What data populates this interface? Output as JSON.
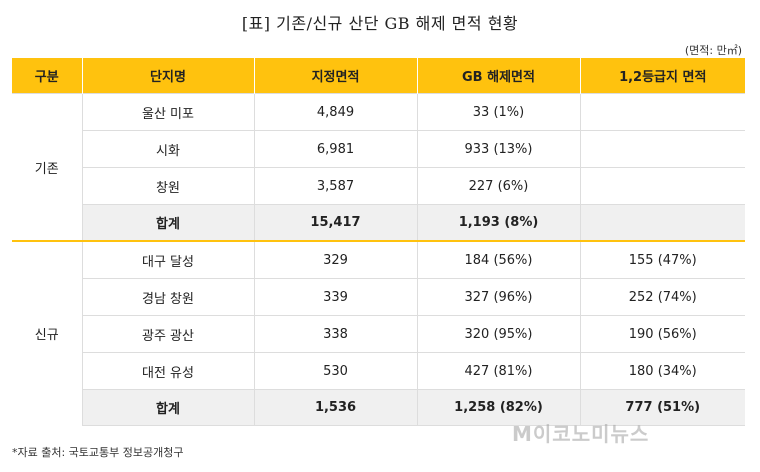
{
  "title": "[표] 기존/신규 산단 GB 해제 면적 현황",
  "unit": "(면적: 만㎡)",
  "header": [
    "구분",
    "단지명",
    "지정면적",
    "GB 해제면적",
    "1,2등급지 면적"
  ],
  "existing": {
    "group": "기존",
    "rows": [
      {
        "name": "울산 미포",
        "area": "4,849",
        "gb": "33 (1%)",
        "grade": ""
      },
      {
        "name": "시화",
        "area": "6,981",
        "gb": "933 (13%)",
        "grade": ""
      },
      {
        "name": "창원",
        "area": "3,587",
        "gb": "227 (6%)",
        "grade": ""
      }
    ],
    "total": {
      "name": "합계",
      "area": "15,417",
      "gb": "1,193 (8%)",
      "grade": ""
    }
  },
  "new": {
    "group": "신규",
    "rows": [
      {
        "name": "대구 달성",
        "area": "329",
        "gb": "184 (56%)",
        "grade": "155 (47%)"
      },
      {
        "name": "경남 창원",
        "area": "339",
        "gb": "327 (96%)",
        "grade": "252 (74%)"
      },
      {
        "name": "광주 광산",
        "area": "338",
        "gb": "320 (95%)",
        "grade": "190 (56%)"
      },
      {
        "name": "대전 유성",
        "area": "530",
        "gb": "427 (81%)",
        "grade": "180 (34%)"
      }
    ],
    "total": {
      "name": "합계",
      "area": "1,536",
      "gb": "1,258 (82%)",
      "grade": "777 (51%)"
    }
  },
  "footnote": "*자료 출처: 국토교통부 정보공개청구",
  "watermark": "M이코노미뉴스",
  "colors": {
    "header": "#FFC20E",
    "sum_row": "#f0f0f0",
    "divider": "#FFC20E"
  }
}
